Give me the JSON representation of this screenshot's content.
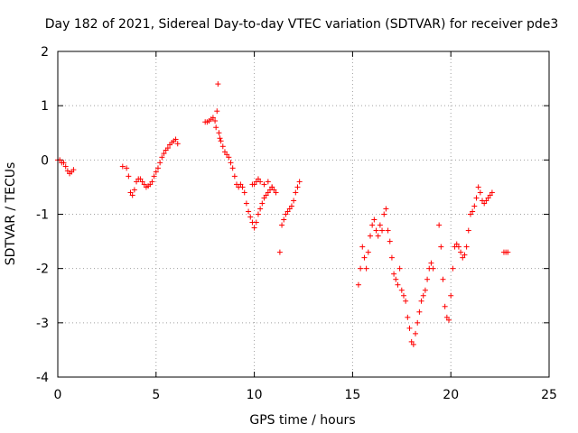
{
  "chart_data": {
    "type": "scatter",
    "title": "Day 182 of 2021, Sidereal Day-to-day VTEC variation (SDTVAR) for receiver pde3",
    "xlabel": "GPS time / hours",
    "ylabel": "SDTVAR / TECUs",
    "xlim": [
      0,
      25
    ],
    "ylim": [
      -4,
      2
    ],
    "xticks": [
      0,
      5,
      10,
      15,
      20,
      25
    ],
    "yticks": [
      -4,
      -3,
      -2,
      -1,
      0,
      1,
      2
    ],
    "xtick_labels": [
      "0",
      "5",
      "10",
      "15",
      "20",
      "25"
    ],
    "ytick_labels": [
      "-4",
      "-3",
      "-2",
      "-1",
      "0",
      "1",
      "2"
    ],
    "grid": true,
    "marker": "+",
    "series": [
      {
        "name": "SDTVAR pde3",
        "color": "#ff0000",
        "x": [
          0.0,
          0.1,
          0.2,
          0.3,
          0.4,
          0.5,
          0.6,
          0.7,
          0.8,
          3.3,
          3.5,
          3.6,
          3.7,
          3.8,
          3.9,
          4.0,
          4.1,
          4.2,
          4.3,
          4.4,
          4.5,
          4.6,
          4.7,
          4.8,
          4.9,
          5.0,
          5.1,
          5.2,
          5.3,
          5.4,
          5.5,
          5.6,
          5.7,
          5.8,
          5.9,
          6.0,
          6.1,
          7.5,
          7.6,
          7.7,
          7.8,
          7.9,
          8.0,
          8.05,
          8.1,
          8.15,
          8.2,
          8.25,
          8.3,
          8.4,
          8.5,
          8.6,
          8.7,
          8.8,
          8.9,
          9.0,
          9.1,
          9.2,
          9.3,
          9.4,
          9.5,
          9.6,
          9.7,
          9.8,
          9.9,
          10.0,
          10.1,
          10.2,
          10.3,
          10.4,
          10.5,
          10.6,
          10.7,
          10.8,
          10.9,
          11.0,
          9.9,
          10.0,
          10.1,
          10.2,
          10.3,
          10.5,
          10.7,
          10.9,
          11.1,
          11.3,
          11.4,
          11.5,
          11.6,
          11.7,
          11.8,
          11.9,
          12.0,
          12.1,
          12.2,
          12.3,
          15.3,
          15.4,
          15.5,
          15.6,
          15.7,
          15.8,
          15.9,
          16.0,
          16.1,
          16.2,
          16.3,
          16.4,
          16.5,
          16.6,
          16.7,
          16.8,
          16.9,
          17.0,
          17.1,
          17.2,
          17.3,
          17.4,
          17.5,
          17.6,
          17.7,
          17.8,
          17.9,
          18.0,
          18.1,
          18.2,
          18.3,
          18.4,
          18.5,
          18.6,
          18.7,
          18.8,
          18.9,
          19.0,
          19.1,
          19.4,
          19.5,
          19.6,
          19.7,
          19.8,
          19.9,
          20.0,
          20.1,
          20.2,
          20.3,
          20.4,
          20.5,
          20.6,
          20.7,
          20.8,
          20.9,
          21.0,
          21.1,
          21.2,
          21.3,
          21.4,
          21.5,
          21.6,
          21.7,
          21.8,
          21.9,
          22.0,
          22.1,
          22.7,
          22.8,
          22.9
        ],
        "y": [
          0.0,
          0.0,
          -0.05,
          -0.05,
          -0.12,
          -0.2,
          -0.25,
          -0.22,
          -0.18,
          -0.12,
          -0.15,
          -0.3,
          -0.6,
          -0.65,
          -0.55,
          -0.4,
          -0.35,
          -0.35,
          -0.4,
          -0.45,
          -0.5,
          -0.48,
          -0.45,
          -0.4,
          -0.3,
          -0.22,
          -0.15,
          -0.05,
          0.05,
          0.12,
          0.18,
          0.22,
          0.28,
          0.32,
          0.35,
          0.38,
          0.3,
          0.7,
          0.7,
          0.72,
          0.75,
          0.78,
          0.72,
          0.6,
          0.9,
          1.4,
          0.5,
          0.4,
          0.35,
          0.25,
          0.15,
          0.1,
          0.05,
          -0.05,
          -0.15,
          -0.3,
          -0.45,
          -0.5,
          -0.45,
          -0.5,
          -0.6,
          -0.8,
          -0.95,
          -1.05,
          -1.15,
          -1.25,
          -1.15,
          -1.0,
          -0.9,
          -0.8,
          -0.7,
          -0.65,
          -0.6,
          -0.55,
          -0.5,
          -0.55,
          -0.45,
          -0.45,
          -0.4,
          -0.35,
          -0.4,
          -0.45,
          -0.4,
          -0.5,
          -0.6,
          -1.7,
          -1.2,
          -1.1,
          -1.0,
          -0.95,
          -0.9,
          -0.85,
          -0.75,
          -0.6,
          -0.5,
          -0.4,
          -2.3,
          -2.0,
          -1.6,
          -1.8,
          -2.0,
          -1.7,
          -1.4,
          -1.2,
          -1.1,
          -1.3,
          -1.4,
          -1.2,
          -1.3,
          -1.0,
          -0.9,
          -1.3,
          -1.5,
          -1.8,
          -2.1,
          -2.2,
          -2.3,
          -2.0,
          -2.4,
          -2.5,
          -2.6,
          -2.9,
          -3.1,
          -3.35,
          -3.4,
          -3.2,
          -3.0,
          -2.8,
          -2.6,
          -2.5,
          -2.4,
          -2.2,
          -2.0,
          -1.9,
          -2.0,
          -1.2,
          -1.6,
          -2.2,
          -2.7,
          -2.9,
          -2.95,
          -2.5,
          -2.0,
          -1.6,
          -1.55,
          -1.6,
          -1.7,
          -1.8,
          -1.75,
          -1.6,
          -1.3,
          -1.0,
          -0.95,
          -0.85,
          -0.7,
          -0.5,
          -0.6,
          -0.75,
          -0.8,
          -0.75,
          -0.7,
          -0.65,
          -0.6,
          -1.7,
          -1.7,
          -1.7
        ]
      }
    ]
  }
}
